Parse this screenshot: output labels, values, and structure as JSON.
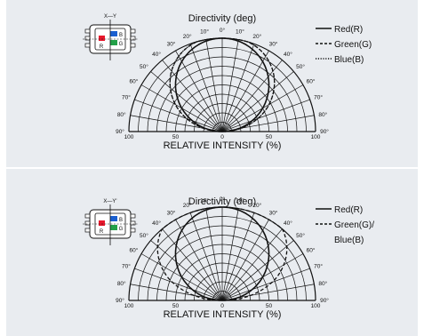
{
  "colors": {
    "background": "#e9ecf0",
    "red": "#e8182c",
    "blue": "#1a5fd0",
    "green": "#22a048",
    "ink": "#111111"
  },
  "chart_data": [
    {
      "type": "polar",
      "title": "Directivity (deg)",
      "xlabel": "RELATIVE INTENSITY  (%)",
      "angle_ticks": [
        "0°",
        "10°",
        "20°",
        "30°",
        "40°",
        "50°",
        "60°",
        "70°",
        "80°",
        "90°"
      ],
      "radial_ticks": [
        "100",
        "50",
        "0",
        "50",
        "100"
      ],
      "axis_label": "X—Y",
      "package_pad_labels": {
        "red": "R",
        "blue": "B",
        "green": "G"
      },
      "legend": [
        "Red(R)",
        "Green(G)",
        "Blue(B)"
      ],
      "series": [
        {
          "name": "Red(R)",
          "style": "solid",
          "half_angle_deg": 60,
          "shape": "circle"
        },
        {
          "name": "Green(G)",
          "style": "dashed",
          "half_angle_deg": 65,
          "shape": "circle"
        },
        {
          "name": "Blue(B)",
          "style": "dotted",
          "half_angle_deg": 65,
          "shape": "circle"
        }
      ]
    },
    {
      "type": "polar",
      "title": "Directivity (deg)",
      "xlabel": "RELATIVE INTENSITY  (%)",
      "angle_ticks": [
        "0°",
        "10°",
        "20°",
        "30°",
        "40°",
        "50°",
        "60°",
        "70°",
        "80°",
        "90°"
      ],
      "radial_ticks": [
        "100",
        "50",
        "0",
        "50",
        "100"
      ],
      "axis_label": "X—Y'",
      "package_pad_labels": {
        "red": "R",
        "blue": "B",
        "green": "G"
      },
      "legend": [
        "Red(R)",
        "Green(G)/",
        "Blue(B)"
      ],
      "series": [
        {
          "name": "Red(R)",
          "style": "solid",
          "half_angle_deg": 60,
          "shape": "circle"
        },
        {
          "name": "Green(G)/Blue(B)",
          "style": "dashed",
          "half_angle_deg": 70,
          "shape": "lobe"
        }
      ]
    }
  ]
}
